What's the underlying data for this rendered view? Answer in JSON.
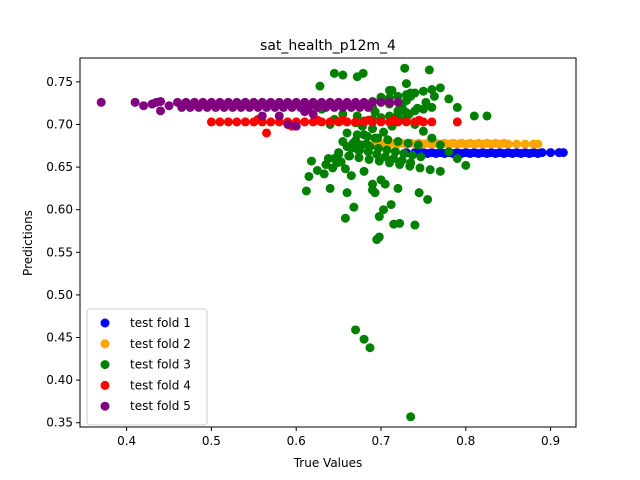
{
  "chart_data": {
    "type": "scatter",
    "title": "sat_health_p12m_4",
    "xlabel": "True Values",
    "ylabel": "Predictions",
    "xlim": [
      0.345,
      0.93
    ],
    "ylim": [
      0.345,
      0.778
    ],
    "xticks": [
      "0.4",
      "0.5",
      "0.6",
      "0.7",
      "0.8",
      "0.9"
    ],
    "xtick_values": [
      0.4,
      0.5,
      0.6,
      0.7,
      0.8,
      0.9
    ],
    "yticks": [
      "0.35",
      "0.40",
      "0.45",
      "0.50",
      "0.55",
      "0.60",
      "0.65",
      "0.70",
      "0.75"
    ],
    "ytick_values": [
      0.35,
      0.4,
      0.45,
      0.5,
      0.55,
      0.6,
      0.65,
      0.7,
      0.75
    ],
    "grid": false,
    "legend_position": "lower-left",
    "series": [
      {
        "name": "test fold 1",
        "color": "#0000ff",
        "x": [
          0.73,
          0.74,
          0.75,
          0.76,
          0.77,
          0.78,
          0.79,
          0.8,
          0.81,
          0.82,
          0.83,
          0.84,
          0.85,
          0.86,
          0.87,
          0.88,
          0.89,
          0.9,
          0.91,
          0.915,
          0.745,
          0.755,
          0.765,
          0.775,
          0.785,
          0.795,
          0.805,
          0.815,
          0.825,
          0.835,
          0.845,
          0.855,
          0.865,
          0.875,
          0.885
        ],
        "y": [
          0.667,
          0.667,
          0.667,
          0.667,
          0.667,
          0.667,
          0.667,
          0.667,
          0.667,
          0.667,
          0.667,
          0.667,
          0.667,
          0.667,
          0.667,
          0.667,
          0.667,
          0.667,
          0.667,
          0.667,
          0.666,
          0.666,
          0.666,
          0.666,
          0.666,
          0.666,
          0.666,
          0.666,
          0.666,
          0.666,
          0.666,
          0.666,
          0.666,
          0.666,
          0.666
        ]
      },
      {
        "name": "test fold 2",
        "color": "#ffa500",
        "x": [
          0.69,
          0.7,
          0.71,
          0.72,
          0.73,
          0.74,
          0.75,
          0.76,
          0.77,
          0.78,
          0.79,
          0.8,
          0.81,
          0.82,
          0.83,
          0.84,
          0.85,
          0.86,
          0.87,
          0.88,
          0.885,
          0.695,
          0.705,
          0.715,
          0.725,
          0.735,
          0.745,
          0.755,
          0.765,
          0.775,
          0.785,
          0.795,
          0.805,
          0.815,
          0.825,
          0.835,
          0.845
        ],
        "y": [
          0.676,
          0.676,
          0.677,
          0.677,
          0.677,
          0.677,
          0.677,
          0.677,
          0.677,
          0.677,
          0.677,
          0.677,
          0.677,
          0.677,
          0.677,
          0.677,
          0.677,
          0.677,
          0.677,
          0.677,
          0.677,
          0.678,
          0.678,
          0.678,
          0.678,
          0.678,
          0.678,
          0.678,
          0.678,
          0.678,
          0.678,
          0.678,
          0.678,
          0.678,
          0.678,
          0.678,
          0.678
        ]
      },
      {
        "name": "test fold 3",
        "color": "#008000",
        "x": [
          0.735,
          0.67,
          0.68,
          0.687,
          0.628,
          0.645,
          0.655,
          0.672,
          0.679,
          0.71,
          0.728,
          0.757,
          0.73,
          0.713,
          0.735,
          0.735,
          0.73,
          0.725,
          0.69,
          0.693,
          0.63,
          0.655,
          0.645,
          0.672,
          0.678,
          0.618,
          0.612,
          0.715,
          0.722,
          0.695,
          0.698,
          0.658,
          0.668,
          0.698,
          0.703,
          0.712,
          0.69,
          0.693,
          0.64,
          0.66,
          0.705,
          0.74,
          0.665,
          0.69,
          0.638,
          0.648,
          0.658,
          0.68,
          0.7,
          0.72,
          0.745,
          0.755,
          0.665,
          0.675,
          0.685,
          0.695,
          0.705,
          0.715,
          0.725,
          0.735,
          0.655,
          0.667,
          0.677,
          0.687,
          0.697,
          0.707,
          0.717,
          0.727,
          0.737,
          0.747,
          0.66,
          0.672,
          0.684,
          0.696,
          0.708,
          0.72,
          0.732,
          0.744,
          0.65,
          0.662,
          0.674,
          0.686,
          0.698,
          0.71,
          0.722,
          0.734,
          0.746,
          0.758,
          0.77,
          0.64,
          0.67,
          0.68,
          0.69,
          0.7,
          0.71,
          0.72,
          0.73,
          0.74,
          0.75,
          0.76,
          0.68,
          0.69,
          0.7,
          0.71,
          0.72,
          0.73,
          0.74,
          0.75,
          0.76,
          0.77,
          0.78,
          0.79,
          0.81,
          0.825,
          0.8,
          0.79,
          0.78,
          0.77,
          0.76,
          0.75,
          0.74,
          0.73,
          0.72,
          0.71,
          0.7,
          0.69,
          0.68,
          0.67,
          0.66,
          0.65,
          0.645,
          0.635,
          0.625,
          0.615,
          0.633,
          0.643,
          0.653,
          0.663,
          0.673,
          0.683,
          0.693,
          0.703,
          0.713,
          0.723,
          0.733,
          0.743,
          0.753,
          0.763
        ],
        "y": [
          0.357,
          0.459,
          0.448,
          0.438,
          0.745,
          0.76,
          0.758,
          0.756,
          0.76,
          0.74,
          0.766,
          0.764,
          0.748,
          0.74,
          0.737,
          0.733,
          0.728,
          0.72,
          0.72,
          0.715,
          0.718,
          0.712,
          0.706,
          0.71,
          0.698,
          0.657,
          0.622,
          0.583,
          0.584,
          0.565,
          0.568,
          0.59,
          0.603,
          0.592,
          0.6,
          0.606,
          0.623,
          0.62,
          0.625,
          0.62,
          0.63,
          0.582,
          0.64,
          0.63,
          0.66,
          0.655,
          0.648,
          0.645,
          0.635,
          0.625,
          0.62,
          0.612,
          0.672,
          0.67,
          0.668,
          0.665,
          0.662,
          0.66,
          0.658,
          0.655,
          0.68,
          0.678,
          0.676,
          0.674,
          0.672,
          0.67,
          0.668,
          0.666,
          0.664,
          0.662,
          0.69,
          0.688,
          0.686,
          0.684,
          0.682,
          0.68,
          0.678,
          0.676,
          0.665,
          0.663,
          0.661,
          0.659,
          0.657,
          0.655,
          0.653,
          0.651,
          0.649,
          0.647,
          0.645,
          0.7,
          0.702,
          0.704,
          0.706,
          0.708,
          0.71,
          0.712,
          0.714,
          0.716,
          0.718,
          0.72,
          0.725,
          0.727,
          0.729,
          0.731,
          0.733,
          0.735,
          0.737,
          0.739,
          0.741,
          0.743,
          0.73,
          0.72,
          0.71,
          0.71,
          0.652,
          0.66,
          0.668,
          0.676,
          0.684,
          0.692,
          0.7,
          0.708,
          0.716,
          0.724,
          0.732,
          0.695,
          0.688,
          0.681,
          0.674,
          0.667,
          0.66,
          0.653,
          0.646,
          0.639,
          0.642,
          0.649,
          0.656,
          0.663,
          0.67,
          0.677,
          0.684,
          0.691,
          0.698,
          0.705,
          0.712,
          0.719,
          0.726,
          0.733
        ]
      },
      {
        "name": "test fold 4",
        "color": "#ff0000",
        "x": [
          0.5,
          0.51,
          0.52,
          0.53,
          0.54,
          0.55,
          0.56,
          0.57,
          0.58,
          0.59,
          0.6,
          0.61,
          0.62,
          0.63,
          0.64,
          0.65,
          0.66,
          0.67,
          0.68,
          0.69,
          0.7,
          0.71,
          0.72,
          0.73,
          0.74,
          0.75,
          0.76,
          0.79,
          0.565,
          0.595,
          0.555,
          0.625,
          0.655,
          0.685,
          0.715,
          0.745
        ],
        "y": [
          0.703,
          0.703,
          0.703,
          0.703,
          0.703,
          0.703,
          0.703,
          0.703,
          0.703,
          0.703,
          0.703,
          0.703,
          0.703,
          0.703,
          0.703,
          0.703,
          0.703,
          0.703,
          0.703,
          0.703,
          0.703,
          0.703,
          0.703,
          0.703,
          0.703,
          0.703,
          0.703,
          0.703,
          0.69,
          0.698,
          0.706,
          0.705,
          0.705,
          0.705,
          0.705,
          0.705
        ]
      },
      {
        "name": "test fold 5",
        "color": "#800080",
        "x": [
          0.37,
          0.41,
          0.42,
          0.43,
          0.435,
          0.44,
          0.45,
          0.46,
          0.47,
          0.48,
          0.49,
          0.5,
          0.51,
          0.52,
          0.53,
          0.54,
          0.55,
          0.56,
          0.57,
          0.58,
          0.59,
          0.6,
          0.61,
          0.62,
          0.63,
          0.64,
          0.65,
          0.66,
          0.67,
          0.68,
          0.69,
          0.7,
          0.71,
          0.72,
          0.44,
          0.465,
          0.475,
          0.485,
          0.495,
          0.505,
          0.515,
          0.525,
          0.535,
          0.545,
          0.555,
          0.565,
          0.575,
          0.585,
          0.595,
          0.605,
          0.615,
          0.625,
          0.635,
          0.645,
          0.655,
          0.665,
          0.675,
          0.685,
          0.56,
          0.58,
          0.59,
          0.6,
          0.61,
          0.62
        ],
        "y": [
          0.726,
          0.726,
          0.722,
          0.724,
          0.726,
          0.727,
          0.722,
          0.726,
          0.726,
          0.726,
          0.726,
          0.726,
          0.726,
          0.726,
          0.726,
          0.726,
          0.726,
          0.726,
          0.726,
          0.726,
          0.726,
          0.726,
          0.726,
          0.726,
          0.726,
          0.726,
          0.726,
          0.726,
          0.726,
          0.726,
          0.726,
          0.726,
          0.726,
          0.726,
          0.716,
          0.72,
          0.72,
          0.72,
          0.72,
          0.72,
          0.72,
          0.72,
          0.72,
          0.72,
          0.72,
          0.72,
          0.72,
          0.72,
          0.72,
          0.72,
          0.72,
          0.72,
          0.72,
          0.72,
          0.72,
          0.72,
          0.72,
          0.72,
          0.71,
          0.71,
          0.7,
          0.698,
          0.715,
          0.712
        ]
      }
    ]
  }
}
